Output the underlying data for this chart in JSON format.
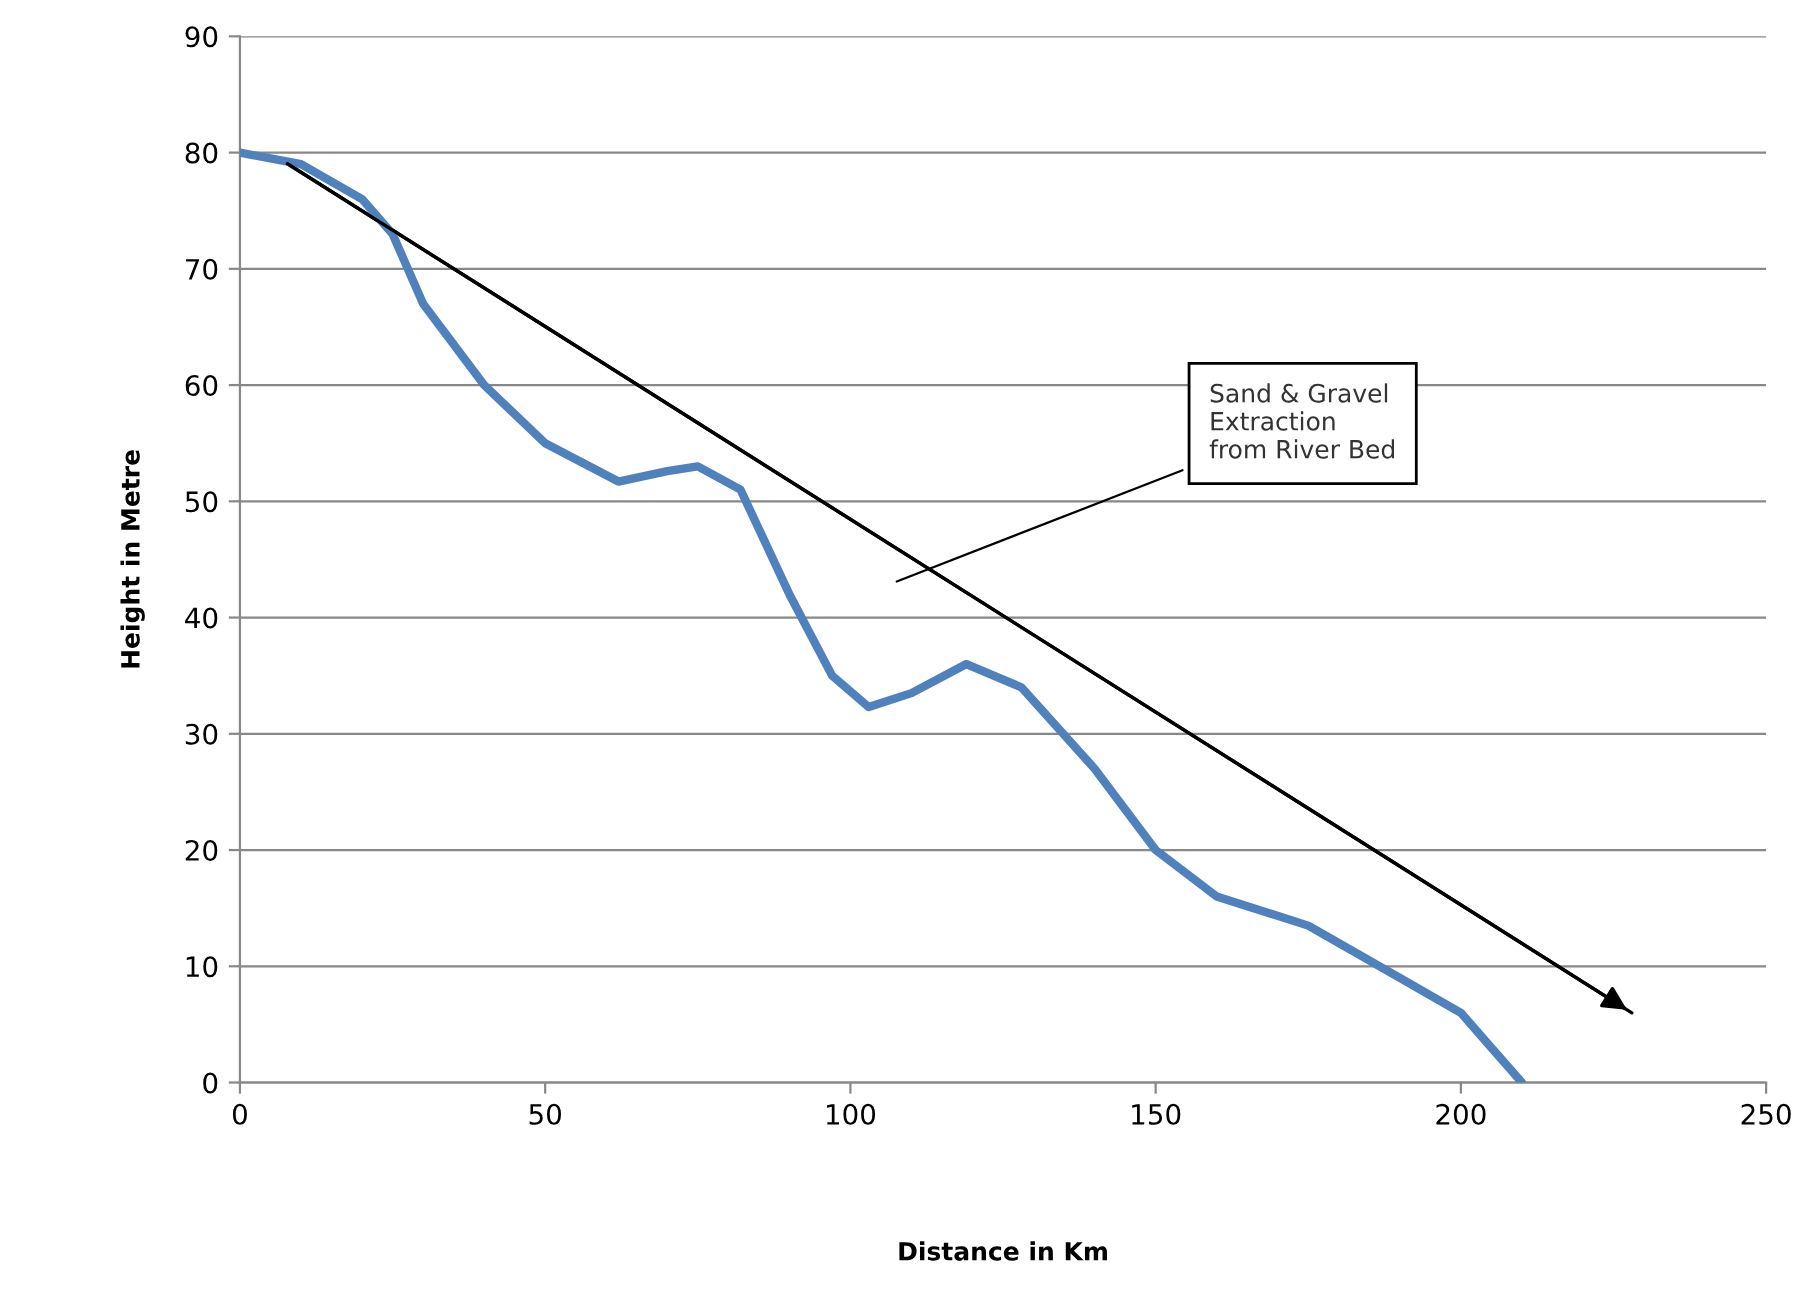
{
  "chart_data": {
    "type": "line",
    "xlabel": "Distance in Km",
    "ylabel": "Height in Metre",
    "series": [
      {
        "color": "#4f81bd",
        "x": [
          0,
          10,
          20,
          25,
          30,
          40,
          50,
          62,
          70,
          75,
          82,
          90,
          97,
          103,
          110,
          119,
          128,
          140,
          150,
          160,
          175,
          190,
          200,
          205,
          210
        ],
        "values": [
          80,
          79,
          76,
          73,
          67,
          60,
          55,
          51.7,
          52.6,
          53,
          51,
          42,
          35,
          32.3,
          33.5,
          36,
          34,
          27,
          20,
          16,
          13.5,
          9,
          6,
          3,
          0
        ]
      },
      {
        "type": "line",
        "color": "#000000",
        "x": [
          7,
          228
        ],
        "values": [
          79.3,
          6
        ]
      }
    ],
    "annotations": [
      "Sand & Gravel\nExtraction\nfrom River Bed"
    ],
    "xlim": [
      0,
      250
    ],
    "xticks": [
      0,
      50,
      100,
      150,
      200,
      250
    ],
    "ylim": [
      0,
      90
    ],
    "yticks": [
      0,
      10,
      20,
      30,
      40,
      50,
      60,
      70,
      80,
      90
    ],
    "grid": "y",
    "legend": false,
    "marker": "none"
  }
}
